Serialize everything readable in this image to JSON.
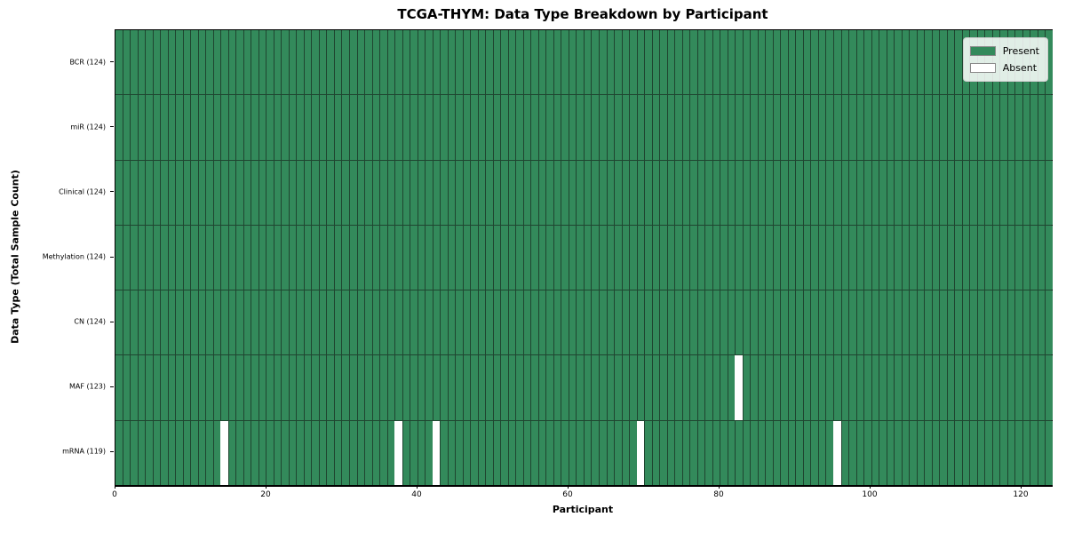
{
  "title": "TCGA-THYM: Data Type Breakdown by Participant",
  "axes": {
    "x_label": "Participant",
    "y_label": "Data Type (Total Sample Count)"
  },
  "legend": {
    "present_label": "Present",
    "absent_label": "Absent"
  },
  "colors": {
    "present": "#338a5b",
    "absent": "#ffffff",
    "grid_line": "#1f4530",
    "plot_border": "#000000",
    "legend_bg": "#f2f2ef",
    "legend_border": "#cfcfcf"
  },
  "chart_data": {
    "type": "heatmap",
    "title": "TCGA-THYM: Data Type Breakdown by Participant",
    "xlabel": "Participant",
    "ylabel": "Data Type (Total Sample Count)",
    "legend_entries": [
      "Present",
      "Absent"
    ],
    "legend_position": "upper right",
    "grid": true,
    "n_participants": 124,
    "xlim": [
      0,
      124
    ],
    "x_ticks": [
      0,
      20,
      40,
      60,
      80,
      100,
      120
    ],
    "rows": [
      {
        "data_type": "BCR",
        "label": "BCR (124)",
        "present_count": 124,
        "absent_participants": []
      },
      {
        "data_type": "miR",
        "label": "miR (124)",
        "present_count": 124,
        "absent_participants": []
      },
      {
        "data_type": "Clinical",
        "label": "Clinical (124)",
        "present_count": 124,
        "absent_participants": []
      },
      {
        "data_type": "Methylation",
        "label": "Methylation (124)",
        "present_count": 124,
        "absent_participants": []
      },
      {
        "data_type": "CN",
        "label": "CN (124)",
        "present_count": 124,
        "absent_participants": []
      },
      {
        "data_type": "MAF",
        "label": "MAF (123)",
        "present_count": 123,
        "absent_participants": [
          82
        ]
      },
      {
        "data_type": "mRNA",
        "label": "mRNA (119)",
        "present_count": 119,
        "absent_participants": [
          14,
          37,
          42,
          69,
          95
        ]
      }
    ]
  }
}
